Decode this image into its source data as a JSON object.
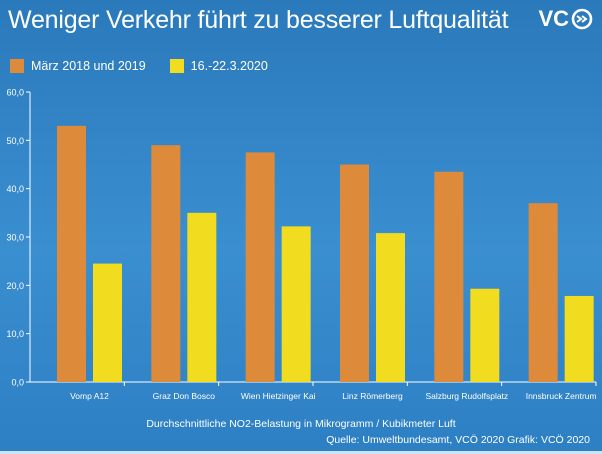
{
  "header": {
    "title": "Weniger Verkehr führt zu besserer Luftqualität",
    "logo_text": "VC",
    "logo_icon": "vcoe-arrows-logo"
  },
  "colors": {
    "background": "#2f7fc0",
    "series_1": "#dd8a3a",
    "series_2": "#f2dc1f",
    "text": "#ffffff"
  },
  "footer": {
    "source": "Quelle: Umweltbundesamt, VCÖ 2020 Grafik: VCÖ 2020"
  },
  "chart_data": {
    "type": "bar",
    "title": "Weniger Verkehr führt zu besserer Luftqualität",
    "xlabel": "Durchschnittliche NO2-Belastung in Mikrogramm / Kubikmeter Luft",
    "ylabel": "",
    "ylim": [
      0,
      60
    ],
    "yticks": [
      "0,0",
      "10,0",
      "20,0",
      "30,0",
      "40,0",
      "50,0",
      "60,0"
    ],
    "grid": false,
    "legend_position": "top-left",
    "categories": [
      "Vomp A12",
      "Graz Don Bosco",
      "Wien Hietzinger Kai",
      "Linz Römerberg",
      "Salzburg Rudolfsplatz",
      "Innsbruck Zentrum"
    ],
    "series": [
      {
        "name": "März 2018 und 2019",
        "color": "#dd8a3a",
        "values": [
          53,
          49,
          47.5,
          45,
          43.5,
          37
        ]
      },
      {
        "name": "16.-22.3.2020",
        "color": "#f2dc1f",
        "values": [
          24.5,
          35,
          32.2,
          30.8,
          19.3,
          17.8
        ]
      }
    ]
  }
}
